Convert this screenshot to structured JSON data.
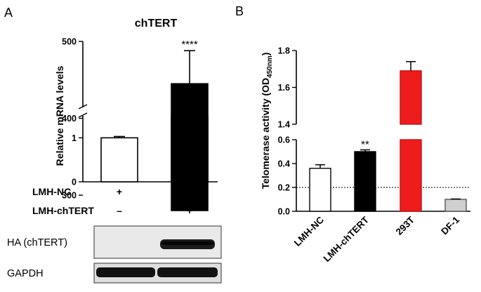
{
  "panels": {
    "a": "A",
    "b": "B"
  },
  "chart_data": [
    {
      "type": "bar",
      "title": "chTERT",
      "ylabel": "Relative  mRNA levels",
      "broken_axis": true,
      "segments": [
        {
          "ylim": [
            0,
            1.5
          ],
          "ticks": [
            "0",
            "1"
          ]
        },
        {
          "ylim": [
            280,
            500
          ],
          "ticks": [
            "300",
            "400",
            "500"
          ]
        }
      ],
      "categories": [
        "LMH-NC",
        "LMH-chTERT"
      ],
      "values": [
        1.0,
        445
      ],
      "errors": [
        0.03,
        43
      ],
      "colors": [
        "#ffffff",
        "#000000"
      ],
      "significance": [
        "",
        "****"
      ],
      "conditions": [
        {
          "label": "LMH-NC",
          "marks": [
            "+",
            "–"
          ]
        },
        {
          "label": "LMH-chTERT",
          "marks": [
            "–",
            "+"
          ]
        }
      ],
      "blots": [
        "HA (chTERT)",
        "GAPDH"
      ]
    },
    {
      "type": "bar",
      "title": "",
      "ylabel": "Telomerase activity (OD",
      "ylabel_sub": "450nm",
      "ylabel_end": ")",
      "broken_axis": true,
      "segments": [
        {
          "ylim": [
            0,
            0.6
          ],
          "ticks": [
            "0.0",
            "0.2",
            "0.4",
            "0.6"
          ]
        },
        {
          "ylim": [
            1.4,
            1.8
          ],
          "ticks": [
            "1.4",
            "1.6",
            "1.8"
          ]
        }
      ],
      "categories": [
        "LMH-NC",
        "LMH-chTERT",
        "293T",
        "DF-1"
      ],
      "values": [
        0.36,
        0.5,
        1.69,
        0.1
      ],
      "errors": [
        0.03,
        0.015,
        0.05,
        0.003
      ],
      "colors": [
        "#ffffff",
        "#000000",
        "#ee1c1c",
        "#cfcfcf"
      ],
      "significance": [
        "",
        "**",
        "",
        ""
      ],
      "threshold": 0.2
    }
  ]
}
